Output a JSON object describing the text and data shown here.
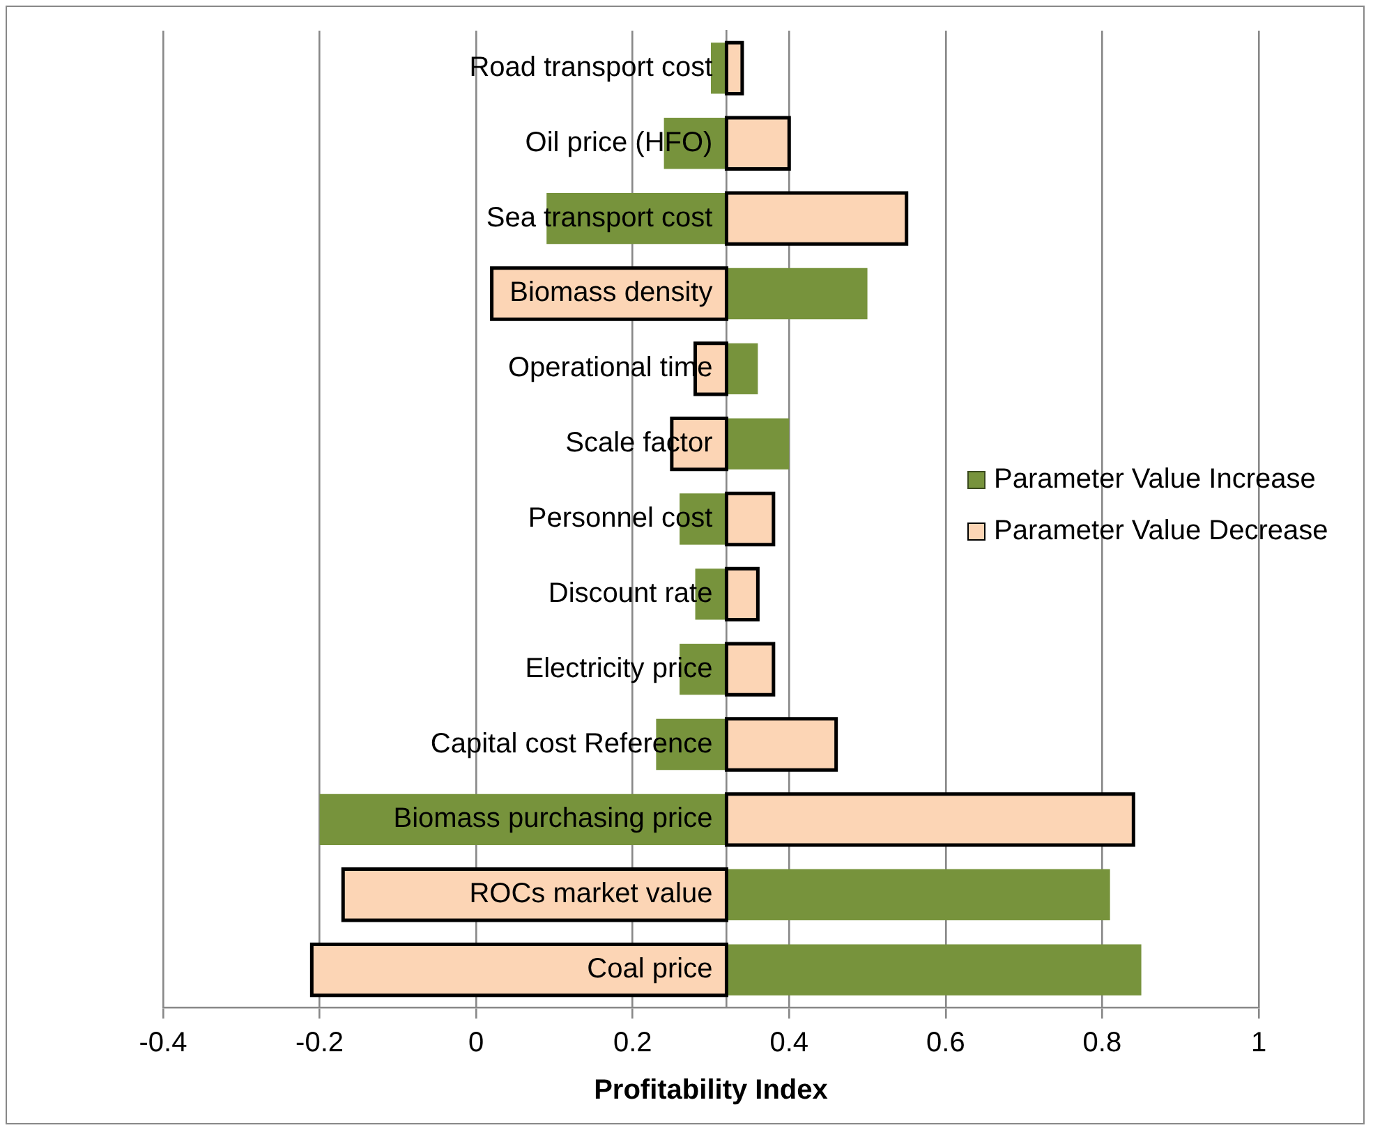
{
  "chart_data": {
    "type": "bar",
    "orientation": "horizontal",
    "xlabel": "Profitability Index",
    "categories": [
      "Road transport cost",
      "Oil price (HFO)",
      "Sea transport cost",
      "Biomass density",
      "Operational time",
      "Scale factor",
      "Personnel cost",
      "Discount rate",
      "Electricity price",
      "Capital cost Reference",
      "Biomass purchasing price",
      "ROCs market value",
      "Coal price"
    ],
    "series": [
      {
        "name": "Parameter Value Increase",
        "color": "#77933c",
        "base": [
          0.32,
          0.32,
          0.32,
          0.32,
          0.32,
          0.32,
          0.32,
          0.32,
          0.32,
          0.32,
          0.32,
          0.32,
          0.32
        ],
        "values": [
          -0.02,
          -0.08,
          -0.23,
          0.18,
          0.04,
          0.08,
          -0.06,
          -0.04,
          -0.06,
          -0.09,
          -0.52,
          0.49,
          0.53
        ]
      },
      {
        "name": "Parameter Value Decrease",
        "color": "#fcd5b5",
        "base": [
          0.32,
          0.32,
          0.32,
          0.32,
          0.32,
          0.32,
          0.32,
          0.32,
          0.32,
          0.32,
          0.32,
          0.32,
          0.32
        ],
        "values": [
          0.02,
          0.08,
          0.23,
          -0.3,
          -0.04,
          -0.07,
          0.06,
          0.04,
          0.06,
          0.14,
          0.52,
          -0.49,
          -0.53
        ]
      }
    ],
    "xlim": [
      -0.4,
      1
    ],
    "xticks": [
      -0.4,
      -0.2,
      0,
      0.2,
      0.4,
      0.6,
      0.8,
      1
    ],
    "grid": "x",
    "legend": "right"
  }
}
